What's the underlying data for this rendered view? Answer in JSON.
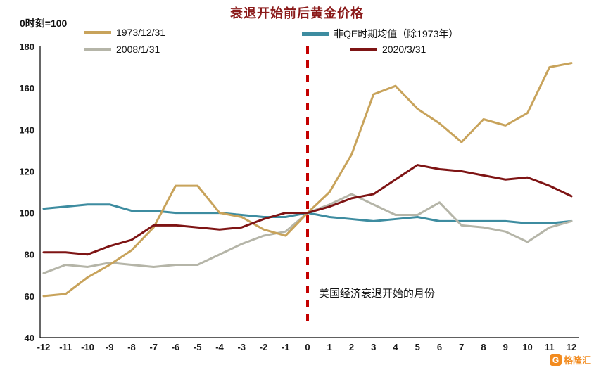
{
  "title": "衰退开始前后黄金价格",
  "axis_note": "0时刻=100",
  "annotation": "美国经济衰退开始的月份",
  "logo": {
    "text": "格隆汇",
    "icon": "G",
    "accent": "#F28B1F"
  },
  "chart_data": {
    "type": "line",
    "title": "衰退开始前后黄金价格",
    "xlabel": "",
    "ylabel": "0时刻=100",
    "x": [
      -12,
      -11,
      -10,
      -9,
      -8,
      -7,
      -6,
      -5,
      -4,
      -3,
      -2,
      -1,
      0,
      1,
      2,
      3,
      4,
      5,
      6,
      7,
      8,
      9,
      10,
      11,
      12
    ],
    "ylim": [
      40,
      180
    ],
    "yticks": [
      40,
      60,
      80,
      100,
      120,
      140,
      160,
      180
    ],
    "grid": false,
    "legend_position": "top",
    "vline": {
      "x": 0,
      "color": "#C40000",
      "style": "dashed",
      "label": "美国经济衰退开始的月份"
    },
    "series": [
      {
        "name": "1973/12/31",
        "color": "#C8A35B",
        "values": [
          60,
          61,
          69,
          75,
          82,
          93,
          113,
          113,
          100,
          98,
          92,
          89,
          100,
          110,
          128,
          157,
          161,
          150,
          143,
          134,
          145,
          142,
          148,
          170,
          172
        ]
      },
      {
        "name": "2008/1/31",
        "color": "#B5B5A8",
        "values": [
          71,
          75,
          74,
          76,
          75,
          74,
          75,
          75,
          80,
          85,
          89,
          91,
          100,
          104,
          109,
          104,
          99,
          99,
          105,
          94,
          93,
          91,
          86,
          93,
          96
        ]
      },
      {
        "name": "非QE时期均值（除1973年）",
        "color": "#3D8CA0",
        "values": [
          102,
          103,
          104,
          104,
          101,
          101,
          100,
          100,
          100,
          99,
          98,
          98,
          100,
          98,
          97,
          96,
          97,
          98,
          96,
          96,
          96,
          96,
          95,
          95,
          96
        ]
      },
      {
        "name": "2020/3/31",
        "color": "#7E1414",
        "values": [
          81,
          81,
          80,
          84,
          87,
          94,
          94,
          93,
          92,
          93,
          97,
          100,
          100,
          103,
          107,
          109,
          116,
          123,
          121,
          120,
          118,
          116,
          117,
          113,
          108
        ]
      }
    ]
  }
}
